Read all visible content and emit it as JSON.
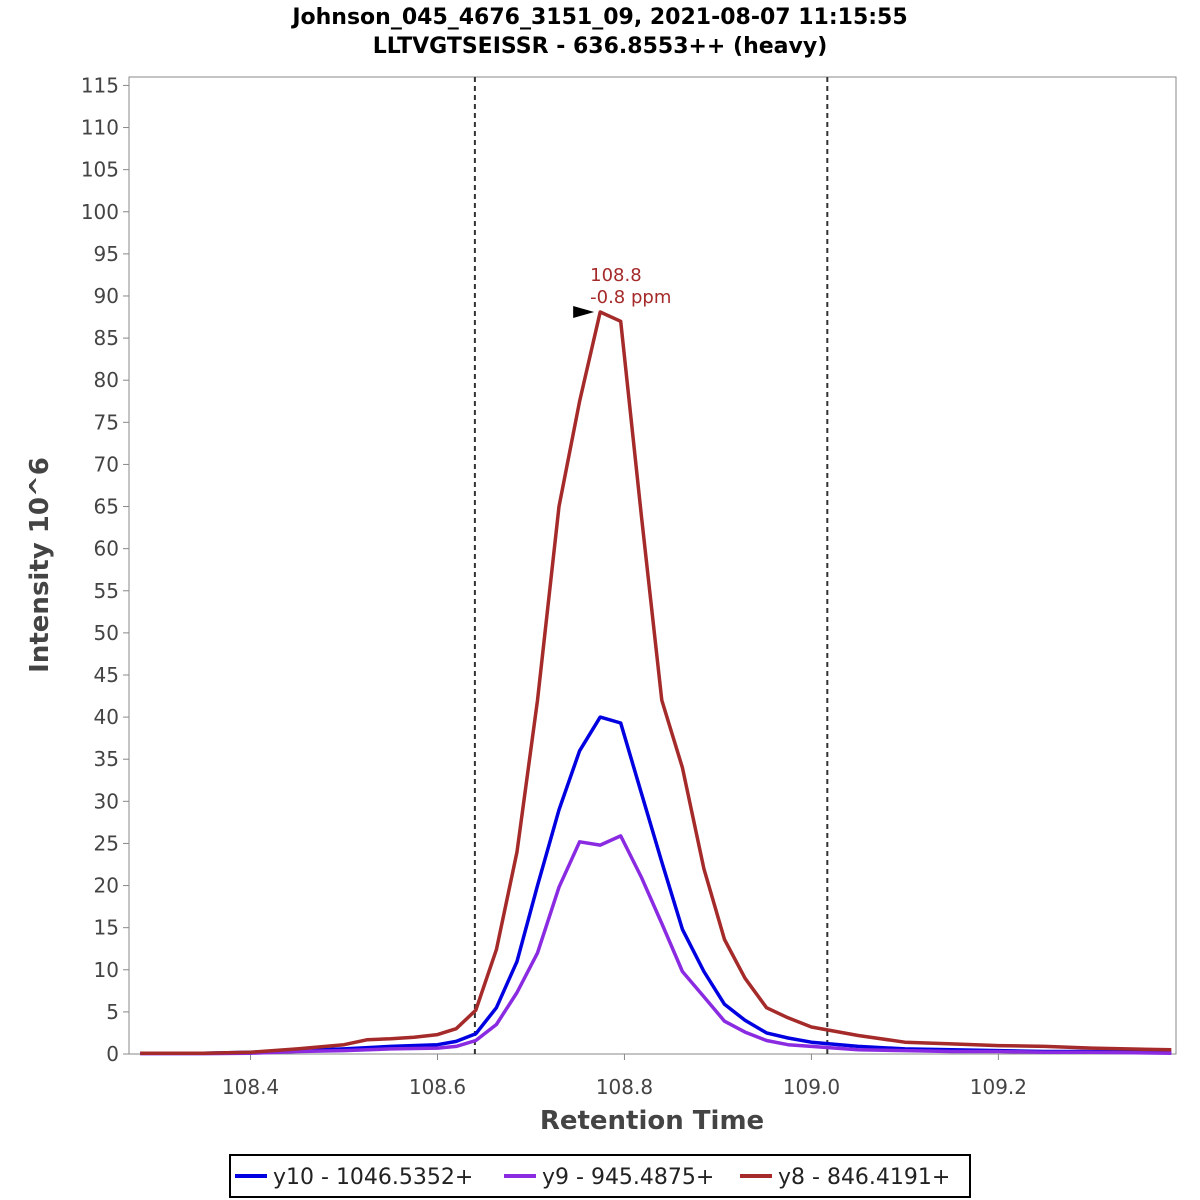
{
  "chart_data": {
    "type": "line",
    "title": "Johnson_045_4676_3151_09, 2021-08-07 11:15:55",
    "subtitle": "LLTVGTSEISSR - 636.8553++ (heavy)",
    "xlabel": "Retention Time",
    "ylabel": "Intensity 10^6",
    "xlim": [
      108.27,
      109.39
    ],
    "ylim": [
      0,
      116
    ],
    "x_ticks": [
      "108.4",
      "108.6",
      "108.8",
      "109.0",
      "109.2"
    ],
    "x_tick_values": [
      108.4,
      108.6,
      108.8,
      109.0,
      109.2
    ],
    "y_ticks": [
      "0",
      "5",
      "10",
      "15",
      "20",
      "25",
      "30",
      "35",
      "40",
      "45",
      "50",
      "55",
      "60",
      "65",
      "70",
      "75",
      "80",
      "85",
      "90",
      "95",
      "100",
      "105",
      "110",
      "115"
    ],
    "y_tick_values": [
      0,
      5,
      10,
      15,
      20,
      25,
      30,
      35,
      40,
      45,
      50,
      55,
      60,
      65,
      70,
      75,
      80,
      85,
      90,
      95,
      100,
      105,
      110,
      115
    ],
    "boundaries": [
      108.64,
      109.017
    ],
    "legend_position": "bottom",
    "series": [
      {
        "name": "y10 - 1046.5352+",
        "color": "#0000e0",
        "x": [
          108.282,
          108.35,
          108.4,
          108.45,
          108.5,
          108.55,
          108.6,
          108.62,
          108.641,
          108.663,
          108.685,
          108.707,
          108.73,
          108.752,
          108.774,
          108.796,
          108.818,
          108.84,
          108.862,
          108.885,
          108.907,
          108.929,
          108.952,
          108.975,
          109.0,
          109.05,
          109.1,
          109.15,
          109.2,
          109.25,
          109.3,
          109.385
        ],
        "values": [
          0.1,
          0.1,
          0.2,
          0.4,
          0.6,
          0.9,
          1.1,
          1.5,
          2.4,
          5.5,
          11,
          20,
          29,
          36,
          40,
          39.3,
          31,
          22.8,
          14.8,
          9.8,
          5.9,
          4,
          2.5,
          1.9,
          1.4,
          0.9,
          0.6,
          0.5,
          0.4,
          0.3,
          0.3,
          0.2
        ]
      },
      {
        "name": "y9 - 945.4875+",
        "color": "#8a2be2",
        "x": [
          108.282,
          108.35,
          108.4,
          108.45,
          108.5,
          108.55,
          108.6,
          108.62,
          108.641,
          108.663,
          108.685,
          108.707,
          108.73,
          108.752,
          108.774,
          108.796,
          108.818,
          108.84,
          108.862,
          108.885,
          108.907,
          108.929,
          108.952,
          108.975,
          109.0,
          109.05,
          109.1,
          109.15,
          109.2,
          109.25,
          109.3,
          109.385
        ],
        "values": [
          0.05,
          0.05,
          0.1,
          0.3,
          0.4,
          0.6,
          0.7,
          0.9,
          1.6,
          3.5,
          7.3,
          12,
          19.8,
          25.2,
          24.8,
          25.9,
          21,
          15.5,
          9.8,
          6.8,
          3.9,
          2.6,
          1.6,
          1.1,
          0.9,
          0.5,
          0.4,
          0.3,
          0.3,
          0.2,
          0.2,
          0.1
        ]
      },
      {
        "name": "y8 - 846.4191+",
        "color": "#a52a2a",
        "x": [
          108.282,
          108.35,
          108.4,
          108.45,
          108.5,
          108.525,
          108.55,
          108.575,
          108.6,
          108.62,
          108.641,
          108.663,
          108.685,
          108.707,
          108.73,
          108.752,
          108.774,
          108.796,
          108.818,
          108.84,
          108.862,
          108.885,
          108.907,
          108.929,
          108.952,
          108.975,
          109.0,
          109.05,
          109.1,
          109.15,
          109.2,
          109.25,
          109.3,
          109.385
        ],
        "values": [
          0.1,
          0.1,
          0.2,
          0.6,
          1.1,
          1.7,
          1.8,
          2,
          2.3,
          3,
          5.2,
          12.4,
          24,
          42,
          65,
          77.5,
          88.1,
          87,
          64,
          42,
          34,
          22,
          13.6,
          9,
          5.5,
          4.3,
          3.2,
          2.2,
          1.4,
          1.2,
          1,
          0.9,
          0.7,
          0.5
        ]
      }
    ],
    "annotation": {
      "series": "y8 - 846.4191+",
      "x": 108.774,
      "y": 88.1,
      "line1": "108.8",
      "line2": "-0.8 ppm",
      "color": "#a52a2a"
    }
  }
}
